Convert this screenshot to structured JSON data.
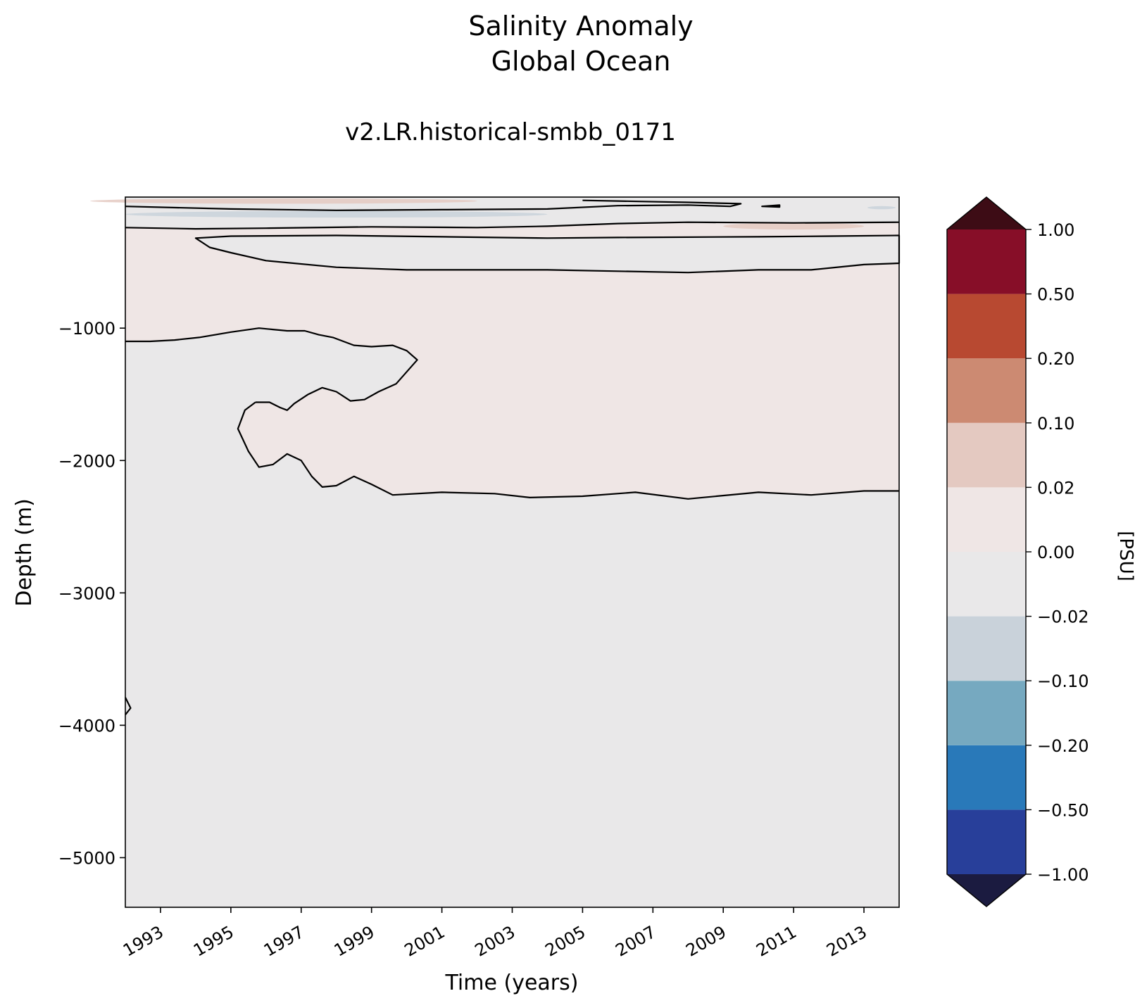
{
  "chart_data": {
    "type": "contour",
    "title": "Salinity Anomaly",
    "title_line2": "Global Ocean",
    "subtitle": "v2.LR.historical-smbb_0171",
    "xlabel": "Time (years)",
    "ylabel": "Depth (m)",
    "xlim": [
      1992.0,
      2014.0
    ],
    "ylim": [
      -5375,
      -10
    ],
    "x_ticks": [
      "1993",
      "1995",
      "1997",
      "1999",
      "2001",
      "2003",
      "2005",
      "2007",
      "2009",
      "2011",
      "2013"
    ],
    "y_ticks": [
      -1000,
      -2000,
      -3000,
      -4000,
      -5000
    ],
    "y_tick_labels": [
      "−1000",
      "−2000",
      "−3000",
      "−4000",
      "−5000"
    ],
    "colorbar": {
      "label": "[PSU]",
      "levels": [
        -1.0,
        -0.5,
        -0.2,
        -0.1,
        -0.02,
        0.0,
        0.02,
        0.1,
        0.2,
        0.5,
        1.0
      ],
      "tick_labels": [
        "−1.00",
        "−0.50",
        "−0.20",
        "−0.10",
        "−0.02",
        "0.00",
        "0.02",
        "0.10",
        "0.20",
        "0.50",
        "1.00"
      ],
      "colors": [
        "#283f9a",
        "#2979b9",
        "#76a9c0",
        "#c9d2da",
        "#e9e8e9",
        "#efe6e5",
        "#e4c9c1",
        "#cc8a72",
        "#b84931",
        "#870e28"
      ],
      "extend_low_color": "#1b1b40",
      "extend_high_color": "#3d0c15"
    },
    "regions": [
      {
        "anomaly_range": [
          -0.02,
          0.0
        ],
        "description_depths": "below about -2250 m and between the near-surface contours"
      },
      {
        "anomaly_range": [
          0.0,
          0.02
        ],
        "description_depths": "approximately -300 to -2250 m after 1996"
      }
    ],
    "contours": [
      {
        "name": "deep",
        "points": [
          [
            1995.7,
            -1560
          ],
          [
            1996.1,
            -1560
          ],
          [
            1996.4,
            -1600
          ],
          [
            1996.6,
            -1620
          ],
          [
            1996.8,
            -1570
          ],
          [
            1997.2,
            -1500
          ],
          [
            1997.6,
            -1450
          ],
          [
            1998.0,
            -1480
          ],
          [
            1998.4,
            -1550
          ],
          [
            1998.8,
            -1540
          ],
          [
            1999.2,
            -1480
          ],
          [
            1999.7,
            -1420
          ],
          [
            2000.3,
            -1240
          ],
          [
            2000.0,
            -1170
          ],
          [
            1999.6,
            -1130
          ],
          [
            1999.0,
            -1140
          ],
          [
            1998.5,
            -1130
          ],
          [
            1997.9,
            -1070
          ],
          [
            1997.5,
            -1050
          ],
          [
            1997.1,
            -1020
          ],
          [
            1996.6,
            -1020
          ],
          [
            1996.2,
            -1010
          ],
          [
            1995.8,
            -1000
          ],
          [
            1995.0,
            -1030
          ],
          [
            1994.1,
            -1070
          ],
          [
            1993.4,
            -1090
          ],
          [
            1992.7,
            -1100
          ],
          [
            1992.0,
            -1100
          ]
        ]
      },
      {
        "name": "deep-lower",
        "points": [
          [
            1995.7,
            -1560
          ],
          [
            1995.4,
            -1620
          ],
          [
            1995.2,
            -1760
          ],
          [
            1995.5,
            -1930
          ],
          [
            1995.8,
            -2050
          ],
          [
            1996.2,
            -2030
          ],
          [
            1996.6,
            -1950
          ],
          [
            1997.0,
            -2000
          ],
          [
            1997.3,
            -2120
          ],
          [
            1997.6,
            -2200
          ],
          [
            1998.0,
            -2190
          ],
          [
            1998.5,
            -2120
          ],
          [
            1999.0,
            -2180
          ],
          [
            1999.6,
            -2260
          ],
          [
            2001.0,
            -2240
          ],
          [
            2002.5,
            -2250
          ],
          [
            2003.5,
            -2280
          ],
          [
            2005.0,
            -2270
          ],
          [
            2006.5,
            -2240
          ],
          [
            2008.0,
            -2290
          ],
          [
            2010.0,
            -2240
          ],
          [
            2011.5,
            -2260
          ],
          [
            2013.0,
            -2230
          ],
          [
            2014.0,
            -2230
          ]
        ]
      },
      {
        "name": "mid",
        "points": [
          [
            1994.0,
            -320
          ],
          [
            1994.4,
            -390
          ],
          [
            1995.0,
            -430
          ],
          [
            1996.0,
            -490
          ],
          [
            1998.0,
            -540
          ],
          [
            2000.0,
            -560
          ],
          [
            2002.0,
            -560
          ],
          [
            2004.0,
            -560
          ],
          [
            2006.0,
            -570
          ],
          [
            2008.0,
            -580
          ],
          [
            2010.0,
            -560
          ],
          [
            2011.5,
            -560
          ],
          [
            2013.0,
            -520
          ],
          [
            2014.0,
            -510
          ],
          [
            2014.0,
            -300
          ],
          [
            2012.0,
            -305
          ],
          [
            2010.0,
            -310
          ],
          [
            2006.0,
            -315
          ],
          [
            2004.0,
            -320
          ],
          [
            2001.0,
            -310
          ],
          [
            1998.0,
            -300
          ],
          [
            1995.0,
            -305
          ],
          [
            1994.0,
            -320
          ]
        ]
      },
      {
        "name": "upper-1",
        "points": [
          [
            1992.0,
            -240
          ],
          [
            1994.0,
            -250
          ],
          [
            1996.0,
            -245
          ],
          [
            1999.0,
            -235
          ],
          [
            2002.0,
            -240
          ],
          [
            2004.0,
            -230
          ],
          [
            2006.0,
            -210
          ],
          [
            2008.0,
            -200
          ],
          [
            2011.0,
            -205
          ],
          [
            2014.0,
            -200
          ]
        ]
      },
      {
        "name": "upper-2",
        "points": [
          [
            1992.0,
            -80
          ],
          [
            1995.0,
            -100
          ],
          [
            1998.0,
            -110
          ],
          [
            2001.0,
            -105
          ],
          [
            2004.0,
            -100
          ],
          [
            2006.0,
            -75
          ],
          [
            2008.0,
            -70
          ],
          [
            2009.2,
            -80
          ],
          [
            2009.5,
            -60
          ],
          [
            2008.0,
            -50
          ],
          [
            2006.0,
            -40
          ],
          [
            2005.0,
            -35
          ]
        ]
      },
      {
        "name": "upper-small",
        "points": [
          [
            2010.1,
            -80
          ],
          [
            2010.6,
            -85
          ],
          [
            2010.6,
            -70
          ],
          [
            2010.1,
            -80
          ]
        ]
      },
      {
        "name": "edge",
        "points": [
          [
            1992.0,
            -3790
          ],
          [
            1992.15,
            -3870
          ],
          [
            1992.0,
            -3920
          ]
        ]
      }
    ],
    "patches": [
      {
        "anomaly_range": [
          -0.1,
          -0.02
        ],
        "center": [
          1998.0,
          -140
        ],
        "halfwidths": [
          6.0,
          25
        ]
      },
      {
        "anomaly_range": [
          0.02,
          0.1
        ],
        "center": [
          1996.5,
          -40
        ],
        "halfwidths": [
          5.5,
          20
        ]
      },
      {
        "anomaly_range": [
          0.02,
          0.1
        ],
        "center": [
          2011.0,
          -230
        ],
        "halfwidths": [
          2.0,
          25
        ]
      },
      {
        "anomaly_range": [
          -0.1,
          -0.02
        ],
        "center": [
          2013.5,
          -90
        ],
        "halfwidths": [
          0.4,
          12
        ]
      }
    ]
  }
}
